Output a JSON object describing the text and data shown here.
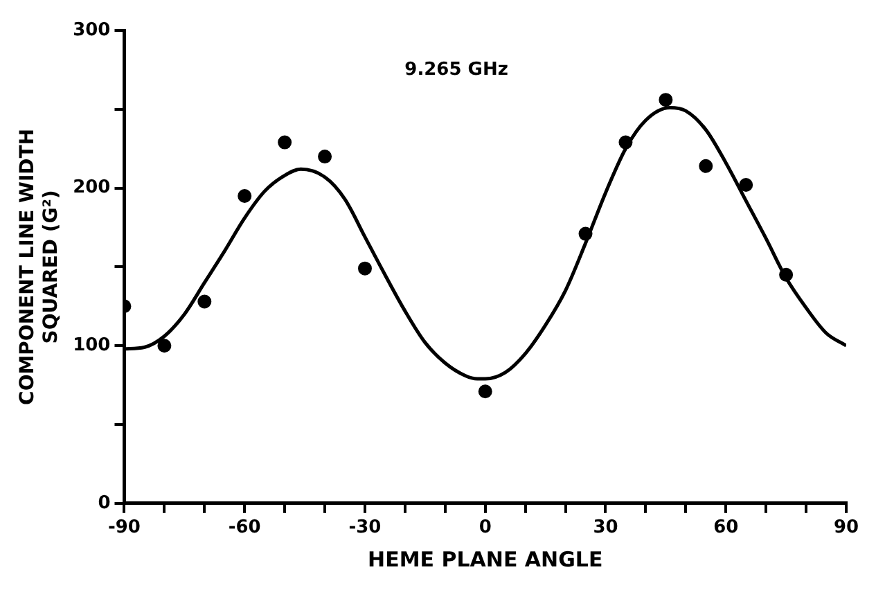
{
  "chart_data": {
    "type": "scatter",
    "xlabel": "HEME PLANE ANGLE",
    "ylabel": "COMPONENT LINE WIDTH\nSQUARED (G²)",
    "annotations": [
      "9.265 GHz"
    ],
    "xlim": [
      -90,
      90
    ],
    "xticks": [
      -90,
      {
        "value": -80,
        "label": null
      },
      {
        "value": -70,
        "label": null
      },
      -60,
      {
        "value": -50,
        "label": null
      },
      {
        "value": -40,
        "label": null
      },
      -30,
      {
        "value": -20,
        "label": null
      },
      {
        "value": -10,
        "label": null
      },
      0,
      {
        "value": 10,
        "label": null
      },
      {
        "value": 20,
        "label": null
      },
      30,
      {
        "value": 40,
        "label": null
      },
      {
        "value": 50,
        "label": null
      },
      60,
      {
        "value": 70,
        "label": null
      },
      {
        "value": 80,
        "label": null
      },
      90
    ],
    "ylim": [
      0,
      300
    ],
    "yticks": [
      0,
      {
        "value": 50,
        "label": null
      },
      100,
      {
        "value": 150,
        "label": null
      },
      200,
      {
        "value": 250,
        "label": null
      },
      300
    ],
    "grid": false,
    "legend": false,
    "marker": "circle",
    "series": [
      {
        "type": "scatter",
        "color": "#000000",
        "x": [
          -90,
          -80,
          -70,
          -60,
          -50,
          -40,
          -30,
          0,
          25,
          35,
          45,
          55,
          65,
          75
        ],
        "values": [
          125,
          100,
          128,
          195,
          229,
          220,
          149,
          71,
          171,
          229,
          256,
          214,
          202,
          145
        ]
      },
      {
        "type": "line",
        "color": "#000000",
        "marker": "none",
        "line_style": "solid",
        "x": [
          -90,
          -85,
          -80,
          -75,
          -70,
          -65,
          -60,
          -55,
          -50,
          -46,
          -40,
          -35,
          -30,
          -25,
          -20,
          -15,
          -10,
          -5,
          -2,
          0,
          5,
          10,
          15,
          20,
          25,
          30,
          35,
          40,
          46,
          50,
          55,
          60,
          65,
          70,
          75,
          80,
          85,
          90
        ],
        "values": [
          98,
          99,
          106,
          120,
          140,
          160,
          181,
          198,
          208,
          212,
          207,
          193,
          169,
          145,
          122,
          102,
          89,
          81,
          79,
          79,
          83,
          95,
          113,
          135,
          165,
          197,
          225,
          243,
          251,
          249,
          237,
          216,
          192,
          168,
          143,
          124,
          108,
          100
        ]
      }
    ]
  }
}
